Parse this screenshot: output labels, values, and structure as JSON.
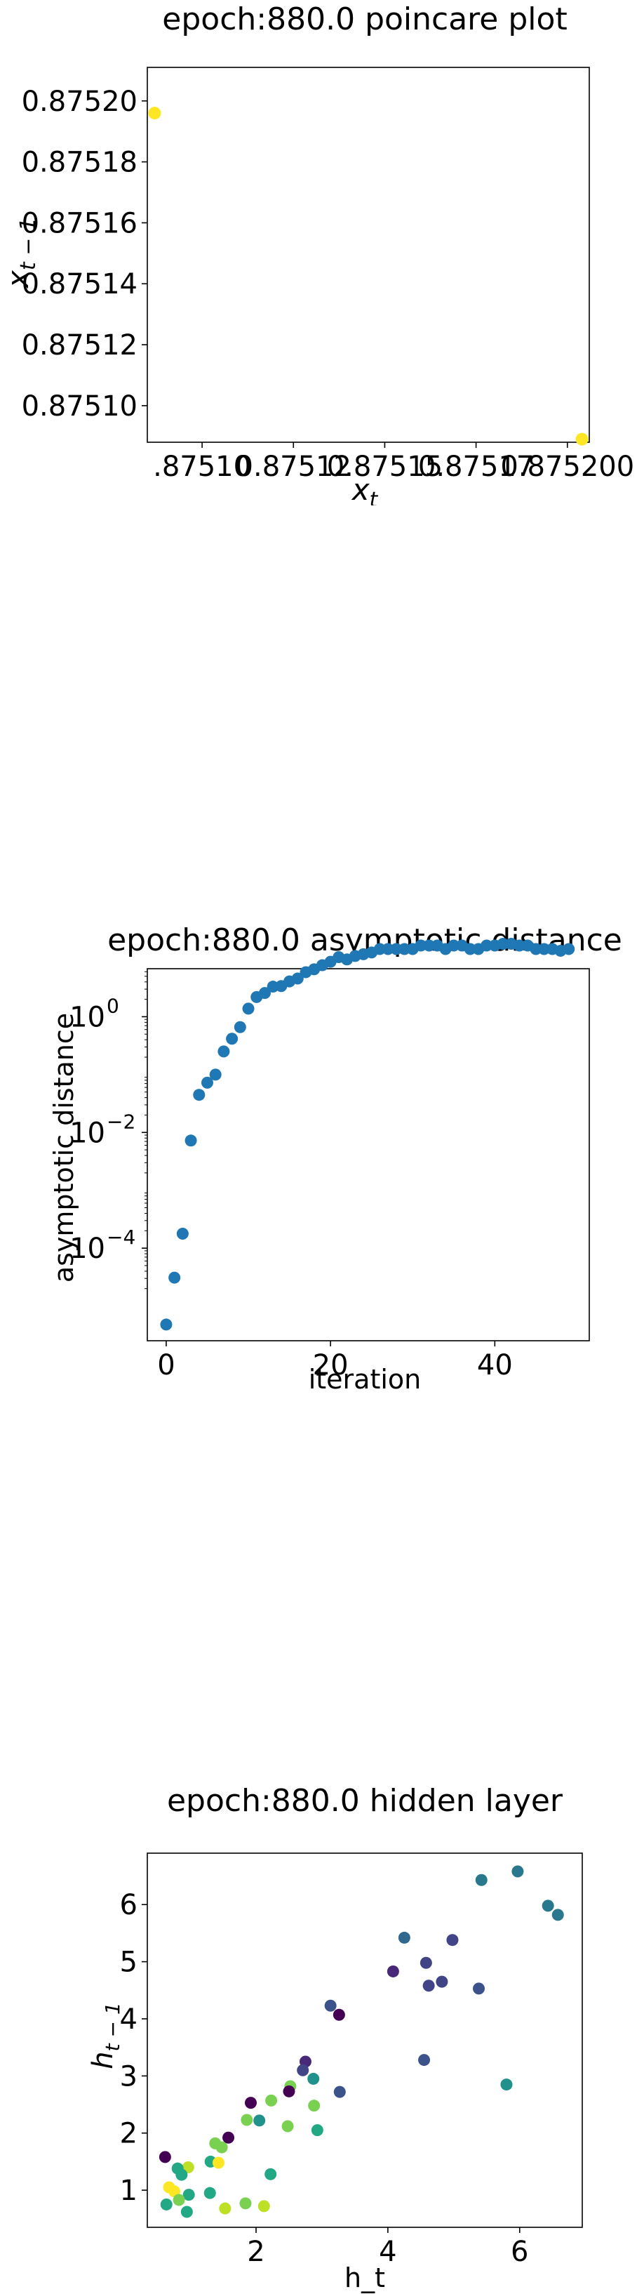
{
  "chart_data": [
    {
      "type": "scatter",
      "title": "epoch:880.0 poincare plot",
      "xlabel": "x_t",
      "ylabel": "x_{t-1}",
      "xlim": [
        0.875085,
        0.875206
      ],
      "ylim": [
        0.875088,
        0.875211
      ],
      "xticks": [
        {
          "v": 0.8751,
          "label": ".87510"
        },
        {
          "v": 0.875125,
          "label": "0.87512"
        },
        {
          "v": 0.87515,
          "label": "0.87515"
        },
        {
          "v": 0.875175,
          "label": "0.87517"
        },
        {
          "v": 0.8752,
          "label": "0.875200"
        }
      ],
      "yticks": [
        {
          "v": 0.8751,
          "label": "0.87510"
        },
        {
          "v": 0.87512,
          "label": "0.87512"
        },
        {
          "v": 0.87514,
          "label": "0.87514"
        },
        {
          "v": 0.87516,
          "label": "0.87516"
        },
        {
          "v": 0.87518,
          "label": "0.87518"
        },
        {
          "v": 0.8752,
          "label": "0.87520"
        }
      ],
      "points_color": "#fde725",
      "x": [
        0.875087,
        0.875204
      ],
      "y": [
        0.875196,
        0.875089
      ]
    },
    {
      "type": "scatter",
      "title": "epoch:880.0 asymptotic distance",
      "xlabel": "iteration",
      "ylabel": "asymptotic distance",
      "yscale": "log",
      "xlim": [
        -2.3,
        51.5
      ],
      "ylim_log10": [
        -5.6,
        0.83
      ],
      "xticks": [
        0,
        20,
        40
      ],
      "yticks": [
        {
          "exp": 0,
          "label": "0"
        },
        {
          "exp": -2,
          "label": "−2"
        },
        {
          "exp": -4,
          "label": "−4"
        }
      ],
      "points_color": "#1f77b4",
      "x": [
        0,
        1,
        2,
        3,
        4,
        5,
        6,
        7,
        8,
        9,
        10,
        11,
        12,
        13,
        14,
        15,
        16,
        17,
        18,
        19,
        20,
        21,
        22,
        23,
        24,
        25,
        26,
        27,
        28,
        29,
        30,
        31,
        32,
        33,
        34,
        35,
        36,
        37,
        38,
        39,
        40,
        41,
        42,
        43,
        44,
        45,
        46,
        47,
        48,
        49
      ],
      "log10_y": [
        -5.32,
        -4.51,
        -3.75,
        -2.14,
        -1.35,
        -1.14,
        -1.0,
        -0.6,
        -0.38,
        -0.18,
        0.14,
        0.34,
        0.41,
        0.52,
        0.53,
        0.61,
        0.66,
        0.77,
        0.82,
        0.89,
        0.95,
        1.03,
        0.99,
        1.05,
        1.08,
        1.11,
        1.17,
        1.17,
        1.17,
        1.17,
        1.17,
        1.23,
        1.23,
        1.23,
        1.17,
        1.23,
        1.23,
        1.17,
        1.17,
        1.23,
        1.23,
        1.26,
        1.26,
        1.23,
        1.23,
        1.17,
        1.17,
        1.17,
        1.14,
        1.17
      ]
    },
    {
      "type": "scatter",
      "title": "epoch:880.0 hidden layer",
      "xlabel": "h_t",
      "ylabel": "h_{t-1}",
      "xlim": [
        0.35,
        6.95
      ],
      "ylim": [
        0.35,
        6.9
      ],
      "xticks": [
        2,
        4,
        6
      ],
      "yticks": [
        1,
        2,
        3,
        4,
        5,
        6
      ],
      "points": [
        {
          "x": 5.97,
          "y": 6.58,
          "c": "#2a788e"
        },
        {
          "x": 5.42,
          "y": 6.43,
          "c": "#2a788e"
        },
        {
          "x": 6.43,
          "y": 5.98,
          "c": "#2a788e"
        },
        {
          "x": 6.58,
          "y": 5.82,
          "c": "#2a788e"
        },
        {
          "x": 4.25,
          "y": 5.42,
          "c": "#31688e"
        },
        {
          "x": 4.98,
          "y": 5.38,
          "c": "#414487"
        },
        {
          "x": 4.58,
          "y": 4.98,
          "c": "#414487"
        },
        {
          "x": 4.08,
          "y": 4.83,
          "c": "#482878"
        },
        {
          "x": 4.82,
          "y": 4.65,
          "c": "#414487"
        },
        {
          "x": 4.62,
          "y": 4.58,
          "c": "#414487"
        },
        {
          "x": 5.38,
          "y": 4.53,
          "c": "#3b528b"
        },
        {
          "x": 3.13,
          "y": 4.23,
          "c": "#3b528b"
        },
        {
          "x": 3.26,
          "y": 4.07,
          "c": "#440154"
        },
        {
          "x": 4.55,
          "y": 3.28,
          "c": "#3b528b"
        },
        {
          "x": 2.75,
          "y": 3.25,
          "c": "#482878"
        },
        {
          "x": 2.71,
          "y": 3.1,
          "c": "#414487"
        },
        {
          "x": 5.8,
          "y": 2.85,
          "c": "#21918c"
        },
        {
          "x": 2.87,
          "y": 2.95,
          "c": "#21918c"
        },
        {
          "x": 2.52,
          "y": 2.82,
          "c": "#7ad151"
        },
        {
          "x": 2.5,
          "y": 2.73,
          "c": "#440154"
        },
        {
          "x": 3.27,
          "y": 2.72,
          "c": "#3b528b"
        },
        {
          "x": 2.23,
          "y": 2.57,
          "c": "#7ad151"
        },
        {
          "x": 1.92,
          "y": 2.53,
          "c": "#440154"
        },
        {
          "x": 2.88,
          "y": 2.48,
          "c": "#7ad151"
        },
        {
          "x": 1.86,
          "y": 2.23,
          "c": "#7ad151"
        },
        {
          "x": 2.05,
          "y": 2.22,
          "c": "#21918c"
        },
        {
          "x": 2.48,
          "y": 2.12,
          "c": "#7ad151"
        },
        {
          "x": 2.93,
          "y": 2.05,
          "c": "#22a884"
        },
        {
          "x": 1.58,
          "y": 1.92,
          "c": "#440154"
        },
        {
          "x": 1.38,
          "y": 1.82,
          "c": "#7ad151"
        },
        {
          "x": 1.48,
          "y": 1.75,
          "c": "#7ad151"
        },
        {
          "x": 0.62,
          "y": 1.58,
          "c": "#440154"
        },
        {
          "x": 1.31,
          "y": 1.5,
          "c": "#22a884"
        },
        {
          "x": 1.43,
          "y": 1.48,
          "c": "#fde725"
        },
        {
          "x": 0.97,
          "y": 1.4,
          "c": "#bddf26"
        },
        {
          "x": 0.81,
          "y": 1.38,
          "c": "#22a884"
        },
        {
          "x": 0.87,
          "y": 1.27,
          "c": "#22a884"
        },
        {
          "x": 2.22,
          "y": 1.28,
          "c": "#22a884"
        },
        {
          "x": 0.68,
          "y": 1.05,
          "c": "#fde725"
        },
        {
          "x": 0.76,
          "y": 0.98,
          "c": "#fde725"
        },
        {
          "x": 1.3,
          "y": 0.95,
          "c": "#22a884"
        },
        {
          "x": 0.98,
          "y": 0.92,
          "c": "#22a884"
        },
        {
          "x": 0.83,
          "y": 0.83,
          "c": "#7ad151"
        },
        {
          "x": 0.64,
          "y": 0.75,
          "c": "#22a884"
        },
        {
          "x": 1.84,
          "y": 0.77,
          "c": "#7ad151"
        },
        {
          "x": 2.12,
          "y": 0.72,
          "c": "#bddf26"
        },
        {
          "x": 1.53,
          "y": 0.68,
          "c": "#bddf26"
        },
        {
          "x": 0.95,
          "y": 0.62,
          "c": "#22a884"
        }
      ]
    }
  ]
}
